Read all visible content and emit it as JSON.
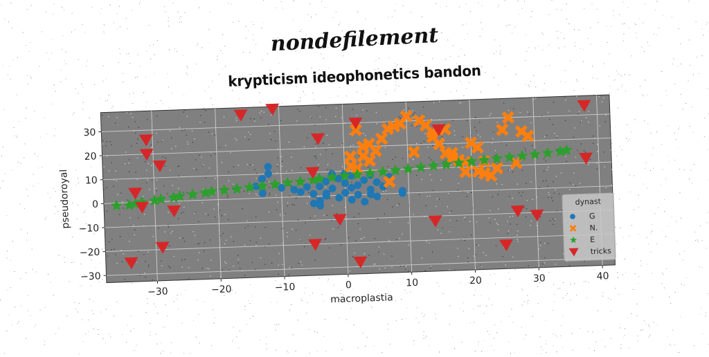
{
  "suptitle": "nondefilement",
  "chart_data": {
    "type": "scatter",
    "title": "krypticism ideophonetics bandon",
    "xlabel": "macroplastia",
    "ylabel": "pseudoroyal",
    "xlim": [
      -38,
      42
    ],
    "ylim": [
      -33,
      38
    ],
    "xticks": [
      -30,
      -20,
      -10,
      0,
      10,
      20,
      30,
      40
    ],
    "yticks": [
      -30,
      -20,
      -10,
      0,
      10,
      20,
      30
    ],
    "xtick_labels": [
      "−30",
      "−20",
      "−10",
      "0",
      "10",
      "20",
      "30",
      "40"
    ],
    "ytick_labels": [
      "−30",
      "−20",
      "−10",
      "0",
      "10",
      "20",
      "30"
    ],
    "grid": true,
    "background": "#808080",
    "legend": {
      "title": "dynast",
      "placement": "lower-right"
    },
    "series": [
      {
        "name": "G",
        "marker": "circle",
        "color": "#1f77b4",
        "points": [
          [
            -12,
            13
          ],
          [
            -12,
            10
          ],
          [
            -13,
            8
          ],
          [
            -14,
            5
          ],
          [
            -13,
            2
          ],
          [
            -10,
            4
          ],
          [
            -8,
            3
          ],
          [
            -7,
            2
          ],
          [
            -6,
            4
          ],
          [
            -5,
            1
          ],
          [
            -4,
            4
          ],
          [
            -4,
            -2
          ],
          [
            -3,
            6
          ],
          [
            -3,
            0
          ],
          [
            -2,
            9
          ],
          [
            -2,
            3
          ],
          [
            -1,
            7
          ],
          [
            -1,
            -1
          ],
          [
            0,
            1
          ],
          [
            0,
            5
          ],
          [
            1,
            -2
          ],
          [
            1,
            8
          ],
          [
            2,
            4
          ],
          [
            2,
            0
          ],
          [
            3,
            6
          ],
          [
            3,
            -3
          ],
          [
            4,
            2
          ],
          [
            4,
            8
          ],
          [
            5,
            -1
          ],
          [
            5,
            5
          ],
          [
            6,
            3
          ],
          [
            7,
            7
          ],
          [
            -5,
            -3
          ],
          [
            -4,
            -4
          ],
          [
            -3,
            1
          ],
          [
            0,
            9
          ],
          [
            1,
            3
          ],
          [
            9,
            1
          ],
          [
            9,
            0
          ],
          [
            4,
            0
          ]
        ]
      },
      {
        "name": "N.",
        "marker": "x",
        "color": "#ff7f0e",
        "points": [
          [
            1,
            12
          ],
          [
            1,
            16
          ],
          [
            2,
            27
          ],
          [
            2,
            11
          ],
          [
            3,
            20
          ],
          [
            3,
            16
          ],
          [
            4,
            21
          ],
          [
            4,
            14
          ],
          [
            5,
            18
          ],
          [
            6,
            23
          ],
          [
            7,
            27
          ],
          [
            8,
            28
          ],
          [
            9,
            29
          ],
          [
            10,
            32
          ],
          [
            11,
            17
          ],
          [
            12,
            30
          ],
          [
            13,
            28
          ],
          [
            14,
            25
          ],
          [
            14,
            23
          ],
          [
            15,
            20
          ],
          [
            16,
            26
          ],
          [
            16,
            16
          ],
          [
            17,
            16
          ],
          [
            17,
            14
          ],
          [
            18,
            13
          ],
          [
            19,
            12
          ],
          [
            20,
            20
          ],
          [
            21,
            18
          ],
          [
            21,
            8
          ],
          [
            22,
            7
          ],
          [
            23,
            6
          ],
          [
            24,
            9
          ],
          [
            25,
            25
          ],
          [
            26,
            30
          ],
          [
            27,
            11
          ],
          [
            28,
            24
          ],
          [
            29,
            22
          ],
          [
            7,
            5
          ],
          [
            19,
            8
          ],
          [
            22,
            12
          ]
        ]
      },
      {
        "name": "E",
        "marker": "star",
        "color": "#2ca02c",
        "points": [
          [
            -36,
            -1
          ],
          [
            -34,
            -1
          ],
          [
            -33,
            -0.5
          ],
          [
            -32,
            0
          ],
          [
            -30,
            0.5
          ],
          [
            -29,
            1
          ],
          [
            -27,
            1.5
          ],
          [
            -26,
            2
          ],
          [
            -24,
            2.5
          ],
          [
            -22,
            3
          ],
          [
            -21,
            3.5
          ],
          [
            -19,
            3.8
          ],
          [
            -17,
            4.2
          ],
          [
            -15,
            4.6
          ],
          [
            -13,
            5
          ],
          [
            -11,
            5.5
          ],
          [
            -9,
            6
          ],
          [
            -7,
            6.3
          ],
          [
            -5,
            6.8
          ],
          [
            -4,
            7.2
          ],
          [
            -2,
            7.6
          ],
          [
            0,
            8
          ],
          [
            2,
            8.4
          ],
          [
            4,
            8.8
          ],
          [
            6,
            9.2
          ],
          [
            8,
            9.6
          ],
          [
            10,
            10
          ],
          [
            12,
            10.5
          ],
          [
            14,
            11
          ],
          [
            16,
            11.3
          ],
          [
            18,
            11.8
          ],
          [
            20,
            12.2
          ],
          [
            22,
            12.6
          ],
          [
            24,
            13
          ],
          [
            26,
            13.4
          ],
          [
            28,
            13.8
          ],
          [
            30,
            14.2
          ],
          [
            32,
            14.6
          ],
          [
            34,
            15.1
          ],
          [
            35,
            15.5
          ]
        ]
      },
      {
        "name": "tricks",
        "marker": "triangle_down",
        "color": "#d62728",
        "points": [
          [
            -31,
            26
          ],
          [
            -31,
            20
          ],
          [
            -29,
            15
          ],
          [
            -33,
            4
          ],
          [
            -32,
            -2
          ],
          [
            -27,
            -4
          ],
          [
            -29,
            -19
          ],
          [
            -34,
            -25
          ],
          [
            -16,
            35
          ],
          [
            -11,
            37
          ],
          [
            -4,
            24
          ],
          [
            -5,
            10
          ],
          [
            -5,
            -20
          ],
          [
            -1,
            -10
          ],
          [
            2,
            30
          ],
          [
            2,
            -28
          ],
          [
            14,
            -12
          ],
          [
            15,
            26
          ],
          [
            25,
            -23
          ],
          [
            27,
            -9
          ],
          [
            30,
            -11
          ],
          [
            38,
            34
          ],
          [
            38,
            12
          ]
        ]
      }
    ]
  }
}
